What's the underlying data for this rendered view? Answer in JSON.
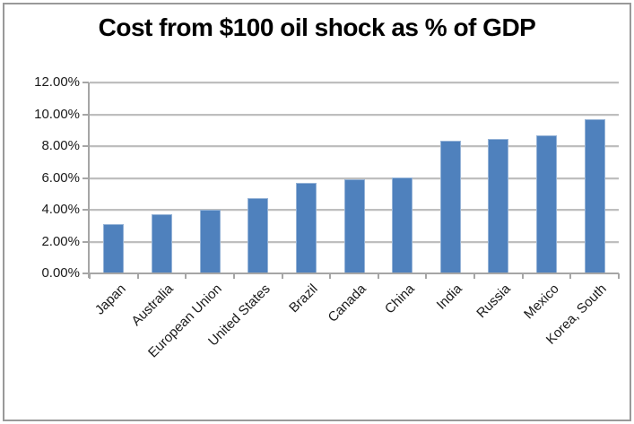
{
  "chart_data": {
    "type": "bar",
    "title": "Cost from $100 oil shock as % of GDP",
    "categories": [
      "Japan",
      "Australia",
      "European Union",
      "United States",
      "Brazil",
      "Canada",
      "China",
      "India",
      "Russia",
      "Mexico",
      "Korea, South"
    ],
    "values": [
      3.1,
      3.7,
      4.0,
      4.75,
      5.7,
      5.9,
      6.0,
      8.35,
      8.45,
      8.65,
      9.7
    ],
    "value_unit": "% of GDP",
    "xlabel": "",
    "ylabel": "",
    "ylim": [
      0,
      12
    ],
    "y_tick_step": 2,
    "y_tick_labels": [
      "12.00%",
      "10.00%",
      "8.00%",
      "6.00%",
      "4.00%",
      "2.00%",
      "0.00%"
    ],
    "grid": "horizontal",
    "legend": "none"
  },
  "style": {
    "bar_fill": "#4F81BD",
    "bar_edge": "#95B3D7",
    "grid_color": "#BEBEBE",
    "axis_color": "#A6A6A6",
    "frame_border": "#999999",
    "text_color": "#1A1A1A"
  }
}
